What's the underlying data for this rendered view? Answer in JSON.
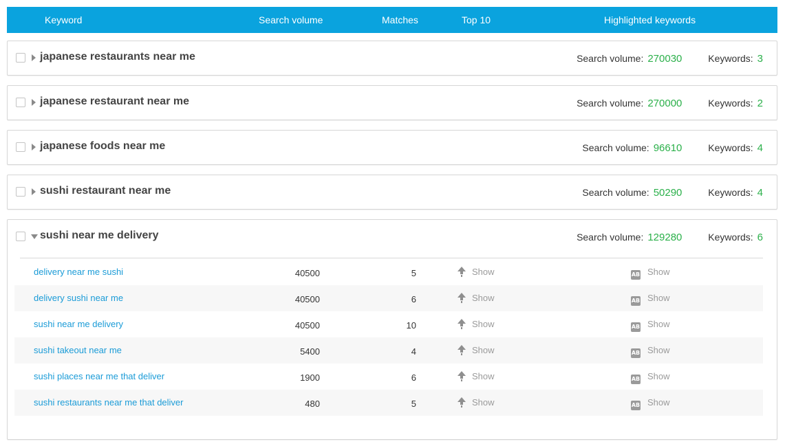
{
  "colors": {
    "accent": "#0aa3de",
    "green": "#2bb04a",
    "link": "#1a9bd7"
  },
  "header": {
    "keyword": "Keyword",
    "search_volume": "Search volume",
    "matches": "Matches",
    "top10": "Top 10",
    "highlighted": "Highlighted keywords"
  },
  "labels": {
    "search_volume": "Search volume:",
    "keywords": "Keywords:",
    "show": "Show",
    "ab": "AB"
  },
  "groups": [
    {
      "title": "japanese restaurants near me",
      "volume": "270030",
      "keywords": "3",
      "expanded": false
    },
    {
      "title": "japanese restaurant near me",
      "volume": "270000",
      "keywords": "2",
      "expanded": false
    },
    {
      "title": "japanese foods near me",
      "volume": "96610",
      "keywords": "4",
      "expanded": false
    },
    {
      "title": "sushi restaurant near me",
      "volume": "50290",
      "keywords": "4",
      "expanded": false
    },
    {
      "title": "sushi near me delivery",
      "volume": "129280",
      "keywords": "6",
      "expanded": true,
      "rows": [
        {
          "keyword": "delivery near me sushi",
          "volume": "40500",
          "matches": "5"
        },
        {
          "keyword": "delivery sushi near me",
          "volume": "40500",
          "matches": "6"
        },
        {
          "keyword": "sushi near me delivery",
          "volume": "40500",
          "matches": "10"
        },
        {
          "keyword": "sushi takeout near me",
          "volume": "5400",
          "matches": "4"
        },
        {
          "keyword": "sushi places near me that deliver",
          "volume": "1900",
          "matches": "6"
        },
        {
          "keyword": "sushi restaurants near me that deliver",
          "volume": "480",
          "matches": "5"
        }
      ]
    }
  ]
}
